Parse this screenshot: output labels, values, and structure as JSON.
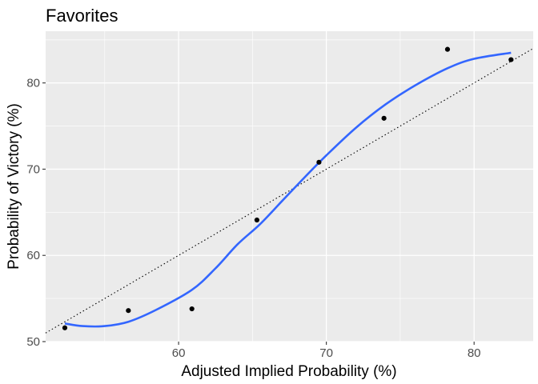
{
  "chart_data": {
    "type": "scatter",
    "title": "Favorites",
    "xlabel": "Adjusted Implied Probability (%)",
    "ylabel": "Probability of Victory (%)",
    "xlim": [
      51,
      84
    ],
    "ylim": [
      50,
      86
    ],
    "x_ticks": [
      60,
      70,
      80
    ],
    "y_ticks": [
      50,
      60,
      70,
      80
    ],
    "x_tick_labels": [
      "60",
      "70",
      "80"
    ],
    "y_tick_labels": [
      "50",
      "60",
      "70",
      "80"
    ],
    "grid": true,
    "legend": "none",
    "points": [
      {
        "x": 52.3,
        "y": 51.6
      },
      {
        "x": 56.6,
        "y": 53.6
      },
      {
        "x": 60.9,
        "y": 53.8
      },
      {
        "x": 65.3,
        "y": 64.1
      },
      {
        "x": 69.5,
        "y": 70.8
      },
      {
        "x": 73.9,
        "y": 75.9
      },
      {
        "x": 78.2,
        "y": 83.9
      },
      {
        "x": 82.5,
        "y": 82.7
      }
    ],
    "smooth_curve": [
      {
        "x": 52.3,
        "y": 52.1
      },
      {
        "x": 53.5,
        "y": 51.8
      },
      {
        "x": 55.0,
        "y": 51.8
      },
      {
        "x": 56.6,
        "y": 52.3
      },
      {
        "x": 58.5,
        "y": 53.7
      },
      {
        "x": 60.9,
        "y": 56.0
      },
      {
        "x": 62.5,
        "y": 58.5
      },
      {
        "x": 64.0,
        "y": 61.3
      },
      {
        "x": 65.5,
        "y": 63.6
      },
      {
        "x": 67.0,
        "y": 66.3
      },
      {
        "x": 68.5,
        "y": 69.0
      },
      {
        "x": 70.0,
        "y": 71.6
      },
      {
        "x": 72.0,
        "y": 74.8
      },
      {
        "x": 74.0,
        "y": 77.5
      },
      {
        "x": 76.0,
        "y": 79.7
      },
      {
        "x": 78.2,
        "y": 81.7
      },
      {
        "x": 80.0,
        "y": 82.8
      },
      {
        "x": 82.5,
        "y": 83.5
      }
    ],
    "reference_line": {
      "type": "identity",
      "style": "dotted",
      "color": "#000000"
    },
    "colors": {
      "panel": "#ebebeb",
      "grid_major": "#ffffff",
      "point": "#000000",
      "smooth": "#3366ff",
      "tick_text": "#4d4d4d",
      "tick_mark": "#333333"
    }
  }
}
